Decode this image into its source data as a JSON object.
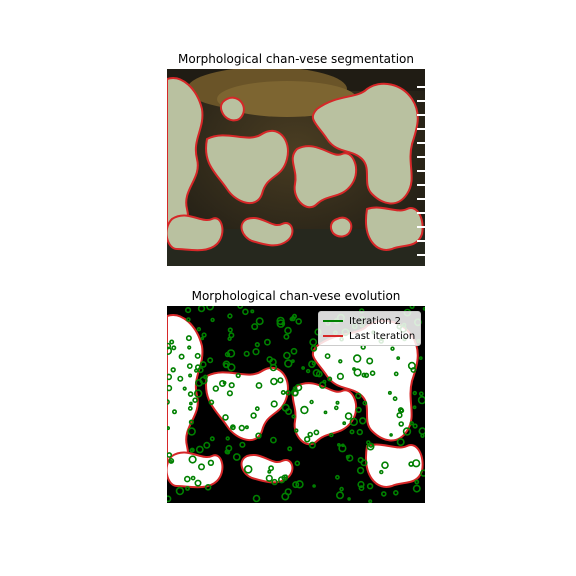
{
  "panels": [
    {
      "title": "Morphological chan-vese segmentation"
    },
    {
      "title": "Morphological chan-vese evolution"
    }
  ],
  "legend": {
    "items": [
      {
        "label": "Iteration 2",
        "color": "#008000"
      },
      {
        "label": "Last iteration",
        "color": "#d62728"
      }
    ]
  },
  "colors": {
    "lichen": "#b9c1a0",
    "bark": "#3b3526",
    "moss": "#5a4a22",
    "contour_red": "#d62728",
    "contour_green": "#008000",
    "mask_white": "#ffffff",
    "mask_black": "#000000"
  }
}
